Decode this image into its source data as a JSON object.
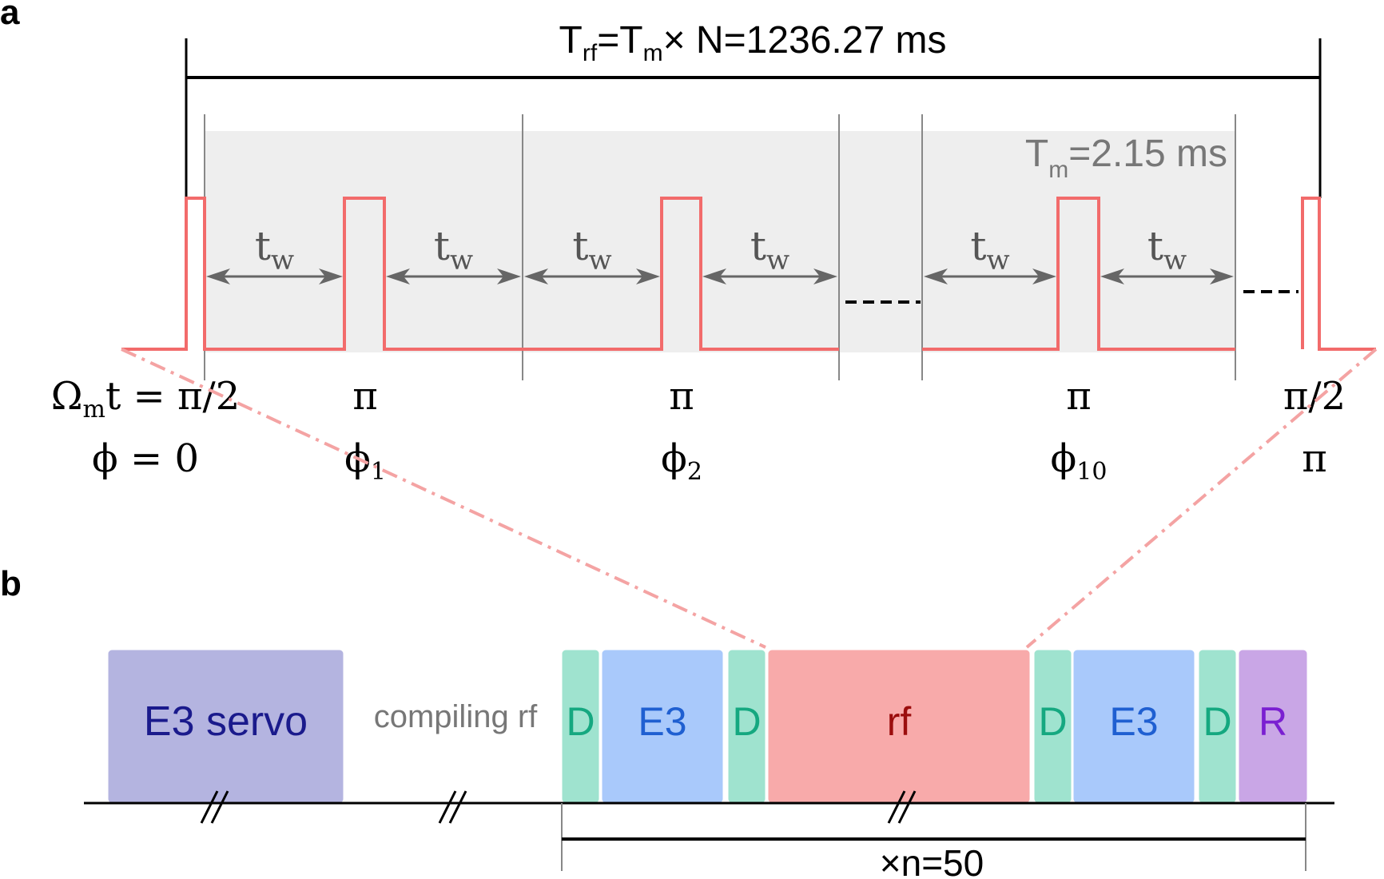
{
  "panel_a": {
    "label": "a",
    "total_duration": {
      "T": "T",
      "sub_rf": "rf",
      "eq1": "=T",
      "sub_m": "m",
      "rest": "× N=1236.27 ms"
    },
    "module_duration": {
      "T": "T",
      "sub_m": "m",
      "rest": "=2.15 ms"
    },
    "wait_label": {
      "t": "t",
      "sub": "w"
    },
    "pulses": [
      {
        "angle": "Ω",
        "angle_sub": "m",
        "angle_rest": "t = π/2",
        "phase": "ϕ = 0",
        "phase_sub": ""
      },
      {
        "angle": "π",
        "phase": "ϕ",
        "phase_sub": "1"
      },
      {
        "angle": "π",
        "phase": "ϕ",
        "phase_sub": "2"
      },
      {
        "angle": "π",
        "phase": "ϕ",
        "phase_sub": "10"
      },
      {
        "angle": "π/2",
        "phase": "π",
        "phase_sub": ""
      }
    ],
    "colors": {
      "pulse": "#f26b6b",
      "wait": "#666666",
      "module_bg": "#eeeeee"
    }
  },
  "panel_b": {
    "label": "b",
    "blocks": [
      {
        "id": "e3-servo",
        "text": "E3 servo",
        "fill": "#b4b4e0",
        "color": "#1a1a8c"
      },
      {
        "id": "d1",
        "text": "D",
        "fill": "#9fe3cf",
        "color": "#15a880"
      },
      {
        "id": "e3-1",
        "text": "E3",
        "fill": "#a9c9fb",
        "color": "#1f5fd1"
      },
      {
        "id": "d2",
        "text": "D",
        "fill": "#9fe3cf",
        "color": "#15a880"
      },
      {
        "id": "rf",
        "text": "rf",
        "fill": "#f8aaaa",
        "color": "#9b0d0d"
      },
      {
        "id": "d3",
        "text": "D",
        "fill": "#9fe3cf",
        "color": "#15a880"
      },
      {
        "id": "e3-2",
        "text": "E3",
        "fill": "#a9c9fb",
        "color": "#1f5fd1"
      },
      {
        "id": "d4",
        "text": "D",
        "fill": "#9fe3cf",
        "color": "#15a880"
      },
      {
        "id": "r",
        "text": "R",
        "fill": "#c9a6e6",
        "color": "#7a1fd1"
      }
    ],
    "compiling_label": "compiling rf",
    "repeat_label": "×n=50"
  }
}
